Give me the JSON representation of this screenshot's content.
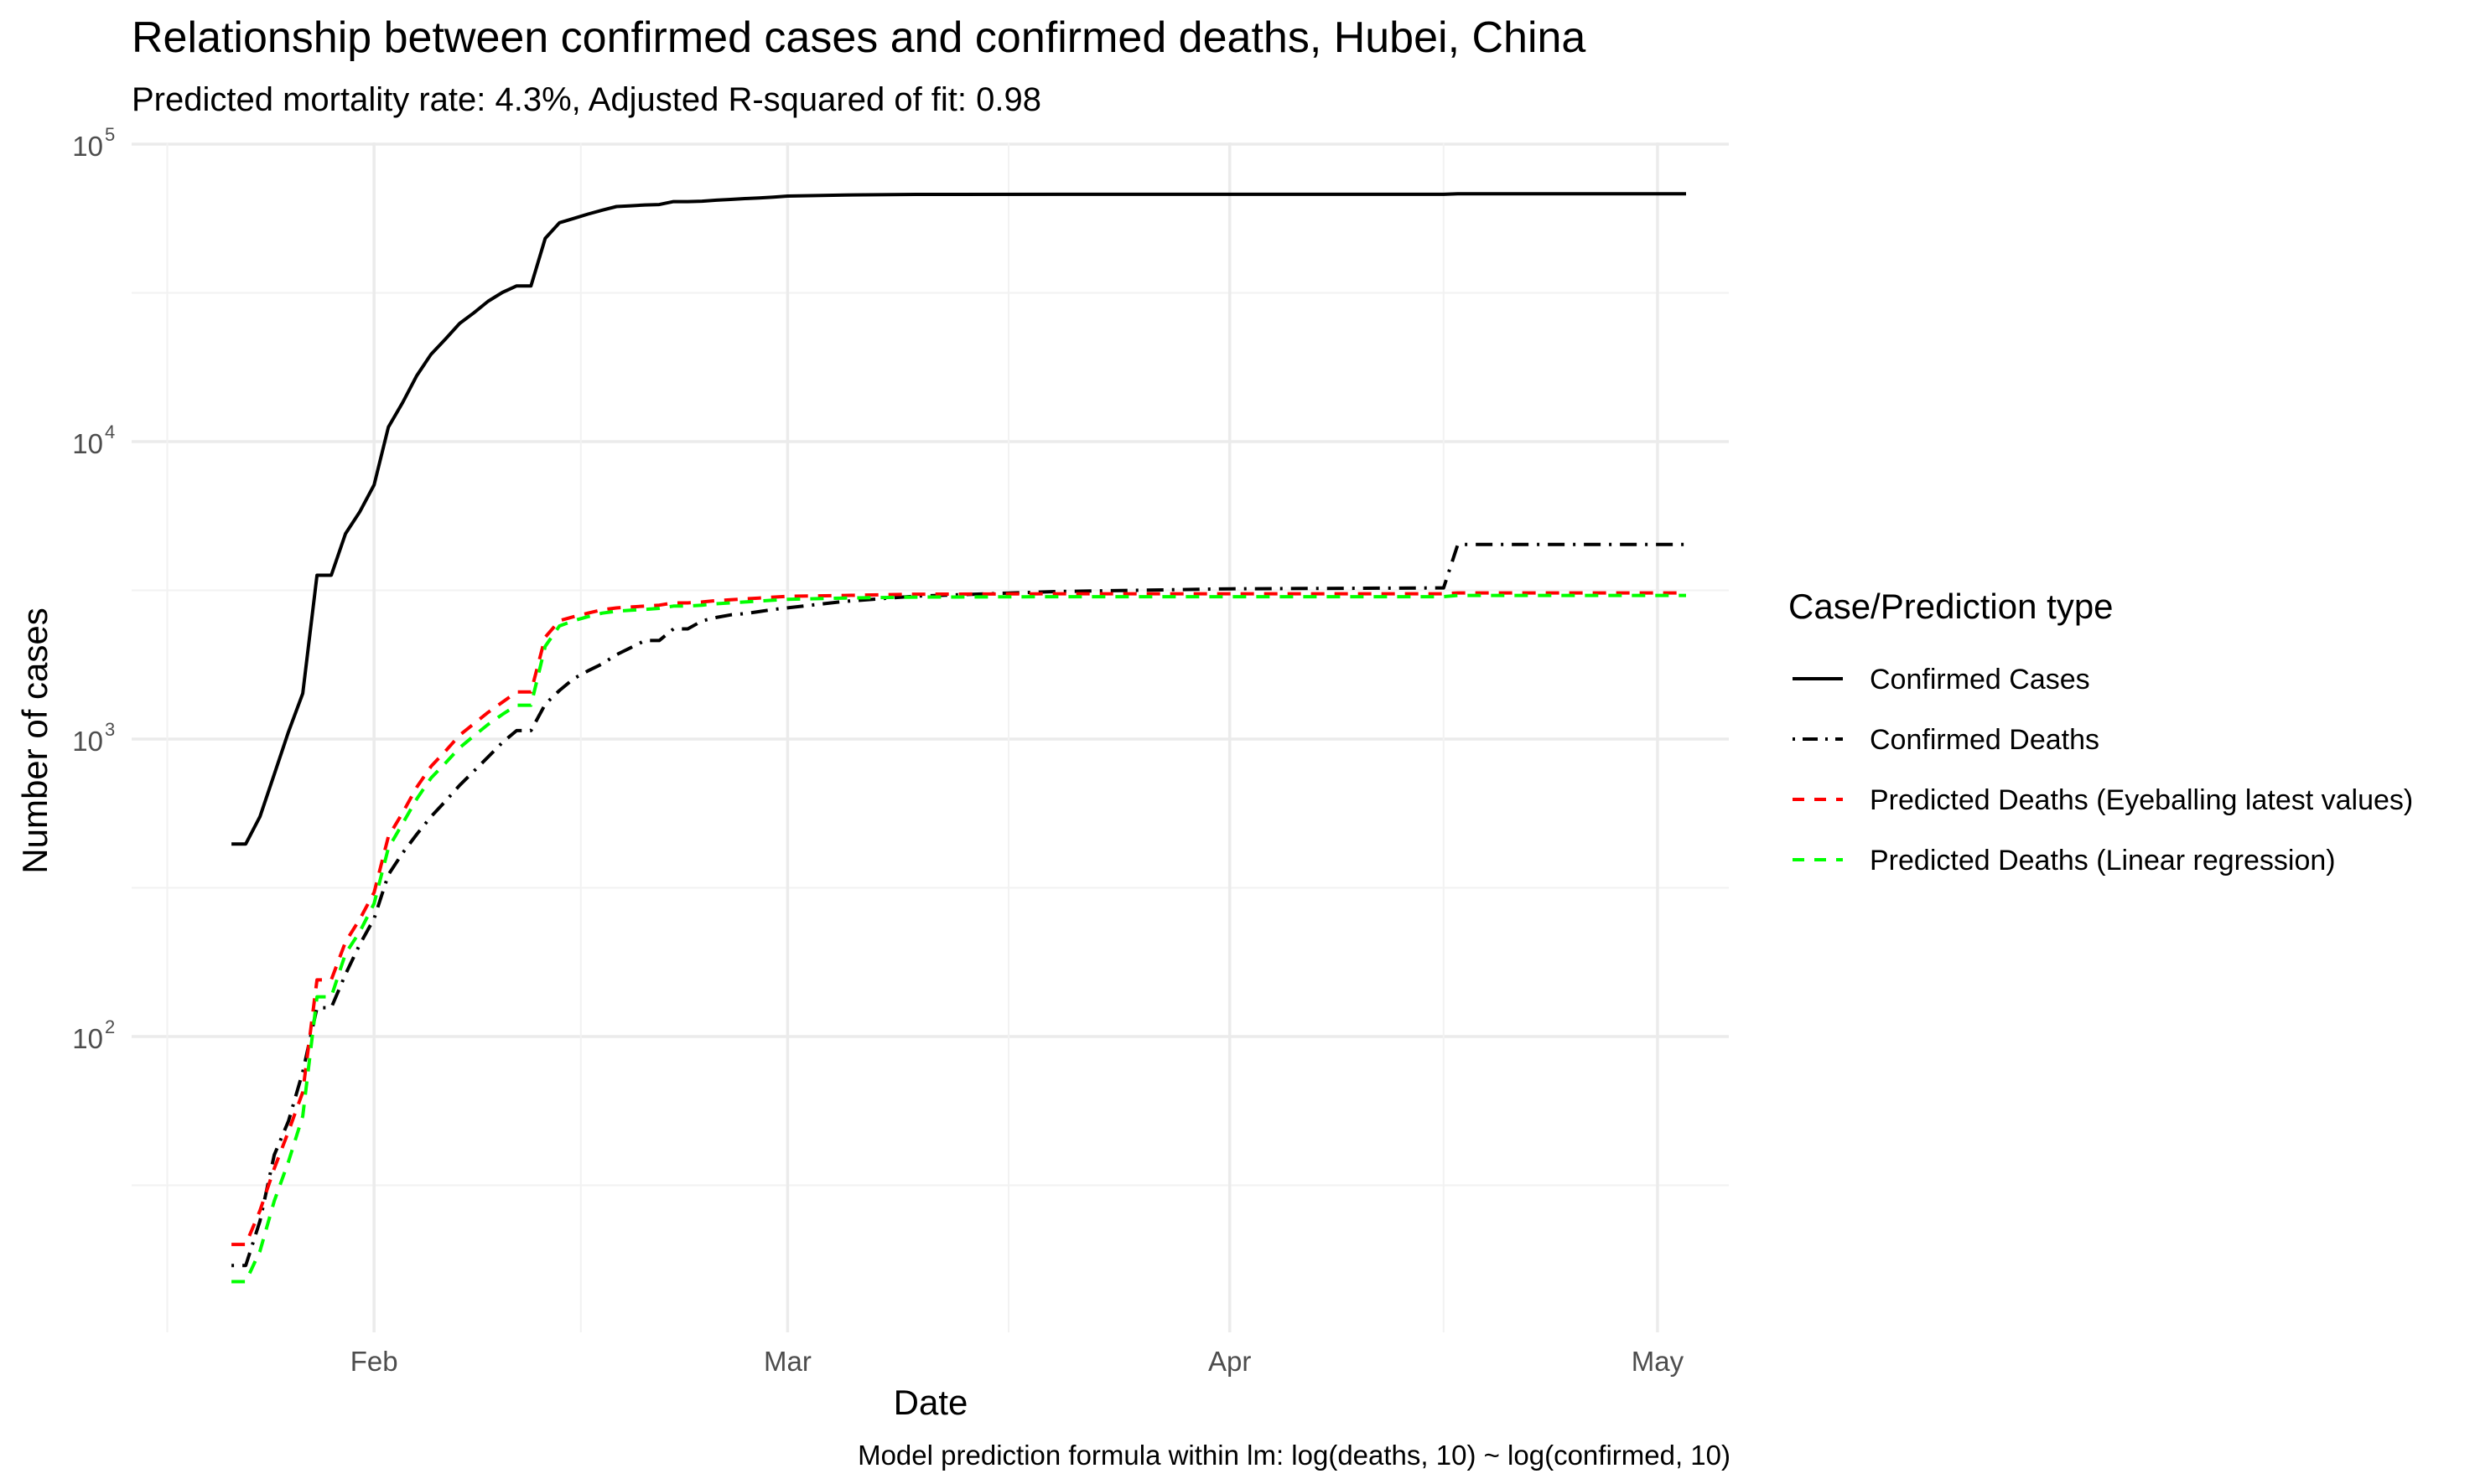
{
  "chart_data": {
    "type": "line",
    "title": "Relationship between confirmed cases and confirmed deaths, Hubei, China",
    "subtitle": "Predicted mortality rate: 4.3%, Adjusted R-squared of fit: 0.98",
    "xlabel": "Date",
    "ylabel": "Number of cases",
    "caption": "Model prediction formula within lm: log(deaths, 10) ~ log(confirmed, 10)",
    "x_ticks": [
      {
        "date": "2020-02-01",
        "label": "Feb"
      },
      {
        "date": "2020-03-01",
        "label": "Mar"
      },
      {
        "date": "2020-04-01",
        "label": "Apr"
      },
      {
        "date": "2020-05-01",
        "label": "May"
      }
    ],
    "y_scale": "log10",
    "y_ticks": [
      {
        "value": 100,
        "base": "10",
        "exp": "2"
      },
      {
        "value": 1000,
        "base": "10",
        "exp": "3"
      },
      {
        "value": 10000,
        "base": "10",
        "exp": "4"
      },
      {
        "value": 100000,
        "base": "10",
        "exp": "5"
      }
    ],
    "xlim": [
      "2020-01-15",
      "2020-05-06"
    ],
    "ylim": [
      10,
      100000
    ],
    "grid": true,
    "legend": {
      "title": "Case/Prediction type",
      "position": "right",
      "entries": [
        {
          "label": "Confirmed Cases",
          "color": "#000000",
          "dash": "solid"
        },
        {
          "label": "Confirmed Deaths",
          "color": "#000000",
          "dash": "dotdash"
        },
        {
          "label": "Predicted Deaths (Eyeballing latest values)",
          "color": "#ff0000",
          "dash": "dashed"
        },
        {
          "label": "Predicted Deaths (Linear regression)",
          "color": "#00ff00",
          "dash": "dashed"
        }
      ]
    },
    "series": [
      {
        "name": "Confirmed Cases",
        "color": "#000000",
        "dash": "solid",
        "points": [
          [
            "2020-01-22",
            444
          ],
          [
            "2020-01-23",
            444
          ],
          [
            "2020-01-24",
            549
          ],
          [
            "2020-01-25",
            761
          ],
          [
            "2020-01-26",
            1058
          ],
          [
            "2020-01-27",
            1423
          ],
          [
            "2020-01-28",
            3554
          ],
          [
            "2020-01-29",
            3554
          ],
          [
            "2020-01-30",
            4903
          ],
          [
            "2020-01-31",
            5806
          ],
          [
            "2020-02-01",
            7153
          ],
          [
            "2020-02-02",
            11177
          ],
          [
            "2020-02-03",
            13522
          ],
          [
            "2020-02-04",
            16678
          ],
          [
            "2020-02-05",
            19665
          ],
          [
            "2020-02-06",
            22112
          ],
          [
            "2020-02-07",
            24953
          ],
          [
            "2020-02-08",
            27100
          ],
          [
            "2020-02-09",
            29631
          ],
          [
            "2020-02-10",
            31728
          ],
          [
            "2020-02-11",
            33366
          ],
          [
            "2020-02-12",
            33366
          ],
          [
            "2020-02-13",
            48206
          ],
          [
            "2020-02-14",
            54406
          ],
          [
            "2020-02-15",
            56249
          ],
          [
            "2020-02-16",
            58182
          ],
          [
            "2020-02-17",
            59989
          ],
          [
            "2020-02-18",
            61682
          ],
          [
            "2020-02-19",
            62031
          ],
          [
            "2020-02-20",
            62442
          ],
          [
            "2020-02-21",
            62662
          ],
          [
            "2020-02-22",
            64084
          ],
          [
            "2020-02-23",
            64084
          ],
          [
            "2020-02-24",
            64287
          ],
          [
            "2020-02-25",
            64786
          ],
          [
            "2020-02-26",
            65187
          ],
          [
            "2020-02-27",
            65596
          ],
          [
            "2020-02-28",
            65914
          ],
          [
            "2020-02-29",
            66337
          ],
          [
            "2020-03-01",
            66907
          ],
          [
            "2020-03-05",
            67466
          ],
          [
            "2020-03-10",
            67760
          ],
          [
            "2020-03-20",
            67800
          ],
          [
            "2020-04-01",
            67802
          ],
          [
            "2020-04-16",
            67803
          ],
          [
            "2020-04-17",
            68128
          ],
          [
            "2020-05-03",
            68128
          ]
        ]
      },
      {
        "name": "Confirmed Deaths",
        "color": "#000000",
        "dash": "dotdash",
        "points": [
          [
            "2020-01-22",
            17
          ],
          [
            "2020-01-23",
            17
          ],
          [
            "2020-01-24",
            24
          ],
          [
            "2020-01-25",
            40
          ],
          [
            "2020-01-26",
            52
          ],
          [
            "2020-01-27",
            76
          ],
          [
            "2020-01-28",
            125
          ],
          [
            "2020-01-29",
            125
          ],
          [
            "2020-01-30",
            162
          ],
          [
            "2020-01-31",
            204
          ],
          [
            "2020-02-01",
            249
          ],
          [
            "2020-02-02",
            350
          ],
          [
            "2020-02-03",
            414
          ],
          [
            "2020-02-04",
            479
          ],
          [
            "2020-02-05",
            549
          ],
          [
            "2020-02-06",
            618
          ],
          [
            "2020-02-07",
            699
          ],
          [
            "2020-02-08",
            780
          ],
          [
            "2020-02-09",
            871
          ],
          [
            "2020-02-10",
            974
          ],
          [
            "2020-02-11",
            1068
          ],
          [
            "2020-02-12",
            1068
          ],
          [
            "2020-02-13",
            1310
          ],
          [
            "2020-02-14",
            1457
          ],
          [
            "2020-02-15",
            1596
          ],
          [
            "2020-02-16",
            1696
          ],
          [
            "2020-02-17",
            1789
          ],
          [
            "2020-02-18",
            1921
          ],
          [
            "2020-02-19",
            2029
          ],
          [
            "2020-02-20",
            2144
          ],
          [
            "2020-02-21",
            2144
          ],
          [
            "2020-02-22",
            2346
          ],
          [
            "2020-02-23",
            2346
          ],
          [
            "2020-02-24",
            2495
          ],
          [
            "2020-02-25",
            2563
          ],
          [
            "2020-02-26",
            2615
          ],
          [
            "2020-02-27",
            2641
          ],
          [
            "2020-02-28",
            2682
          ],
          [
            "2020-02-29",
            2727
          ],
          [
            "2020-03-01",
            2761
          ],
          [
            "2020-03-05",
            2902
          ],
          [
            "2020-03-10",
            3024
          ],
          [
            "2020-03-20",
            3133
          ],
          [
            "2020-04-01",
            3199
          ],
          [
            "2020-04-16",
            3222
          ],
          [
            "2020-04-17",
            4512
          ],
          [
            "2020-05-03",
            4512
          ]
        ]
      },
      {
        "name": "Predicted Deaths (Eyeballing latest values)",
        "color": "#ff0000",
        "dash": "dashed",
        "points": [
          [
            "2020-01-22",
            20
          ],
          [
            "2020-01-23",
            20
          ],
          [
            "2020-01-24",
            26
          ],
          [
            "2020-01-25",
            36
          ],
          [
            "2020-01-26",
            48
          ],
          [
            "2020-01-27",
            65
          ],
          [
            "2020-01-28",
            155
          ],
          [
            "2020-01-29",
            155
          ],
          [
            "2020-01-30",
            208
          ],
          [
            "2020-01-31",
            248
          ],
          [
            "2020-02-01",
            305
          ],
          [
            "2020-02-02",
            470
          ],
          [
            "2020-02-03",
            565
          ],
          [
            "2020-02-04",
            690
          ],
          [
            "2020-02-05",
            810
          ],
          [
            "2020-02-06",
            910
          ],
          [
            "2020-02-07",
            1030
          ],
          [
            "2020-02-08",
            1125
          ],
          [
            "2020-02-09",
            1230
          ],
          [
            "2020-02-10",
            1330
          ],
          [
            "2020-02-11",
            1440
          ],
          [
            "2020-02-12",
            1440
          ],
          [
            "2020-02-13",
            2200
          ],
          [
            "2020-02-14",
            2500
          ],
          [
            "2020-02-15",
            2580
          ],
          [
            "2020-02-16",
            2650
          ],
          [
            "2020-02-17",
            2720
          ],
          [
            "2020-02-18",
            2760
          ],
          [
            "2020-02-19",
            2780
          ],
          [
            "2020-02-20",
            2800
          ],
          [
            "2020-02-21",
            2820
          ],
          [
            "2020-02-22",
            2870
          ],
          [
            "2020-02-23",
            2870
          ],
          [
            "2020-02-24",
            2890
          ],
          [
            "2020-02-25",
            2920
          ],
          [
            "2020-02-26",
            2940
          ],
          [
            "2020-02-27",
            2960
          ],
          [
            "2020-02-28",
            2980
          ],
          [
            "2020-02-29",
            3000
          ],
          [
            "2020-03-01",
            3020
          ],
          [
            "2020-03-05",
            3040
          ],
          [
            "2020-03-10",
            3070
          ],
          [
            "2020-03-20",
            3080
          ],
          [
            "2020-04-01",
            3080
          ],
          [
            "2020-04-16",
            3080
          ],
          [
            "2020-04-17",
            3100
          ],
          [
            "2020-05-03",
            3100
          ]
        ]
      },
      {
        "name": "Predicted Deaths (Linear regression)",
        "color": "#00ff00",
        "dash": "dashed",
        "points": [
          [
            "2020-01-22",
            15
          ],
          [
            "2020-01-23",
            15
          ],
          [
            "2020-01-24",
            19
          ],
          [
            "2020-01-25",
            28
          ],
          [
            "2020-01-26",
            38
          ],
          [
            "2020-01-27",
            54
          ],
          [
            "2020-01-28",
            136
          ],
          [
            "2020-01-29",
            136
          ],
          [
            "2020-01-30",
            190
          ],
          [
            "2020-01-31",
            225
          ],
          [
            "2020-02-01",
            280
          ],
          [
            "2020-02-02",
            430
          ],
          [
            "2020-02-03",
            520
          ],
          [
            "2020-02-04",
            630
          ],
          [
            "2020-02-05",
            740
          ],
          [
            "2020-02-06",
            830
          ],
          [
            "2020-02-07",
            935
          ],
          [
            "2020-02-08",
            1025
          ],
          [
            "2020-02-09",
            1120
          ],
          [
            "2020-02-10",
            1210
          ],
          [
            "2020-02-11",
            1300
          ],
          [
            "2020-02-12",
            1300
          ],
          [
            "2020-02-13",
            2050
          ],
          [
            "2020-02-14",
            2400
          ],
          [
            "2020-02-15",
            2500
          ],
          [
            "2020-02-16",
            2580
          ],
          [
            "2020-02-17",
            2650
          ],
          [
            "2020-02-18",
            2690
          ],
          [
            "2020-02-19",
            2710
          ],
          [
            "2020-02-20",
            2730
          ],
          [
            "2020-02-21",
            2750
          ],
          [
            "2020-02-22",
            2800
          ],
          [
            "2020-02-23",
            2800
          ],
          [
            "2020-02-24",
            2820
          ],
          [
            "2020-02-25",
            2850
          ],
          [
            "2020-02-26",
            2870
          ],
          [
            "2020-02-27",
            2890
          ],
          [
            "2020-02-28",
            2910
          ],
          [
            "2020-02-29",
            2930
          ],
          [
            "2020-03-01",
            2950
          ],
          [
            "2020-03-05",
            2980
          ],
          [
            "2020-03-10",
            3000
          ],
          [
            "2020-03-20",
            3010
          ],
          [
            "2020-04-01",
            3010
          ],
          [
            "2020-04-16",
            3010
          ],
          [
            "2020-04-17",
            3040
          ],
          [
            "2020-05-03",
            3040
          ]
        ]
      }
    ]
  }
}
